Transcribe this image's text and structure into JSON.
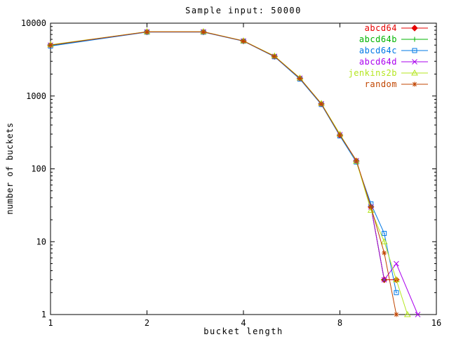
{
  "window": {
    "background": "#ffffff",
    "foreground": "#000000"
  },
  "chart_data": {
    "type": "line",
    "title": "Sample input: 50000",
    "xlabel": "bucket length",
    "ylabel": "number of buckets",
    "x_scale": "log2",
    "y_scale": "log10",
    "xlim": [
      1,
      16
    ],
    "ylim": [
      1,
      10000
    ],
    "x_ticks": [
      1,
      2,
      4,
      8,
      16
    ],
    "y_ticks": [
      1,
      10,
      100,
      1000,
      10000
    ],
    "grid": "off",
    "legend_position": "top-right-inside",
    "series": [
      {
        "name": "abcd64",
        "color": "#e60000",
        "marker": "diamond",
        "points": [
          [
            1,
            5000
          ],
          [
            2,
            7600
          ],
          [
            3,
            7600
          ],
          [
            4,
            5700
          ],
          [
            5,
            3500
          ],
          [
            6,
            1750
          ],
          [
            7,
            780
          ],
          [
            8,
            290
          ],
          [
            9,
            128
          ],
          [
            10,
            30
          ],
          [
            11,
            3
          ],
          [
            12,
            3
          ]
        ]
      },
      {
        "name": "abcd64b",
        "color": "#00b400",
        "marker": "plus",
        "points": [
          [
            1,
            4950
          ],
          [
            2,
            7580
          ],
          [
            3,
            7580
          ],
          [
            4,
            5690
          ],
          [
            5,
            3490
          ],
          [
            6,
            1745
          ],
          [
            7,
            778
          ],
          [
            8,
            291
          ],
          [
            9,
            127
          ],
          [
            10,
            30
          ],
          [
            11,
            3
          ]
        ]
      },
      {
        "name": "abcd64c",
        "color": "#0078e6",
        "marker": "square",
        "points": [
          [
            1,
            4850
          ],
          [
            2,
            7520
          ],
          [
            3,
            7520
          ],
          [
            4,
            5660
          ],
          [
            5,
            3460
          ],
          [
            6,
            1710
          ],
          [
            7,
            765
          ],
          [
            8,
            283
          ],
          [
            9,
            124
          ],
          [
            10,
            33
          ],
          [
            11,
            13
          ],
          [
            12,
            2
          ]
        ]
      },
      {
        "name": "abcd64d",
        "color": "#aa00ee",
        "marker": "cross",
        "points": [
          [
            1,
            5000
          ],
          [
            2,
            7600
          ],
          [
            3,
            7600
          ],
          [
            4,
            5700
          ],
          [
            5,
            3510
          ],
          [
            6,
            1760
          ],
          [
            7,
            785
          ],
          [
            8,
            296
          ],
          [
            9,
            129
          ],
          [
            10,
            30
          ],
          [
            11,
            3
          ],
          [
            12,
            5
          ],
          [
            14,
            1
          ]
        ]
      },
      {
        "name": "jenkins2b",
        "color": "#b4e61e",
        "marker": "triangle",
        "points": [
          [
            1,
            5050
          ],
          [
            2,
            7650
          ],
          [
            3,
            7650
          ],
          [
            4,
            5730
          ],
          [
            5,
            3550
          ],
          [
            6,
            1770
          ],
          [
            7,
            792
          ],
          [
            8,
            300
          ],
          [
            9,
            128
          ],
          [
            10,
            27
          ],
          [
            11,
            10
          ],
          [
            12,
            3
          ],
          [
            13,
            1
          ]
        ]
      },
      {
        "name": "random",
        "color": "#c04500",
        "marker": "asterisk",
        "points": [
          [
            1,
            5000
          ],
          [
            2,
            7600
          ],
          [
            3,
            7600
          ],
          [
            4,
            5700
          ],
          [
            5,
            3500
          ],
          [
            6,
            1750
          ],
          [
            7,
            780
          ],
          [
            8,
            290
          ],
          [
            9,
            131
          ],
          [
            10,
            30
          ],
          [
            11,
            7
          ],
          [
            12,
            1
          ]
        ]
      }
    ]
  }
}
